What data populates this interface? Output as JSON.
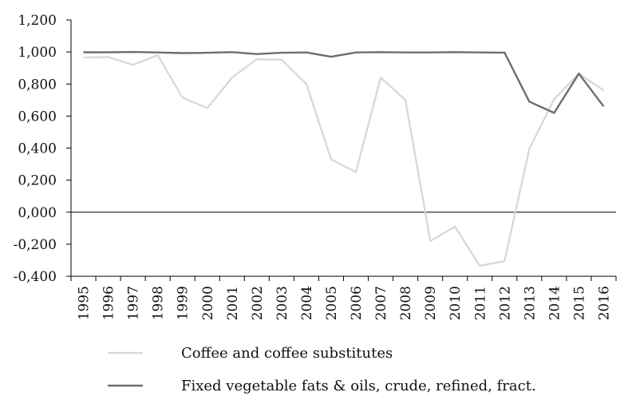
{
  "chart_data": {
    "type": "line",
    "title": "",
    "xlabel": "",
    "ylabel": "",
    "ylim": [
      -0.4,
      1.2
    ],
    "yticks": [
      -0.4,
      -0.2,
      0.0,
      0.2,
      0.4,
      0.6,
      0.8,
      1.0,
      1.2
    ],
    "ytick_labels": [
      "-0,400",
      "-0,200",
      "0,000",
      "0,200",
      "0,400",
      "0,600",
      "0,800",
      "1,000",
      "1,200"
    ],
    "categories": [
      "1995",
      "1996",
      "1997",
      "1998",
      "1999",
      "2000",
      "2001",
      "2002",
      "2003",
      "2004",
      "2005",
      "2006",
      "2007",
      "2008",
      "2009",
      "2010",
      "2011",
      "2012",
      "2013",
      "2014",
      "2015",
      "2016"
    ],
    "grid": false,
    "legend_position": "bottom",
    "series": [
      {
        "name": "Coffee and coffee substitutes",
        "color": "#d9d9d9",
        "values": [
          0.965,
          0.968,
          0.92,
          0.98,
          0.715,
          0.65,
          0.84,
          0.955,
          0.952,
          0.8,
          0.33,
          0.25,
          0.84,
          0.7,
          -0.18,
          -0.09,
          -0.335,
          -0.305,
          0.395,
          0.705,
          0.865,
          0.76
        ]
      },
      {
        "name": "Fixed vegetable fats & oils, crude, refined, fract.",
        "color": "#6e6e6e",
        "values": [
          0.998,
          0.998,
          1.0,
          0.997,
          0.993,
          0.995,
          0.999,
          0.987,
          0.995,
          0.997,
          0.97,
          0.997,
          0.999,
          0.997,
          0.997,
          0.999,
          0.997,
          0.996,
          0.69,
          0.62,
          0.865,
          0.66
        ]
      }
    ]
  }
}
